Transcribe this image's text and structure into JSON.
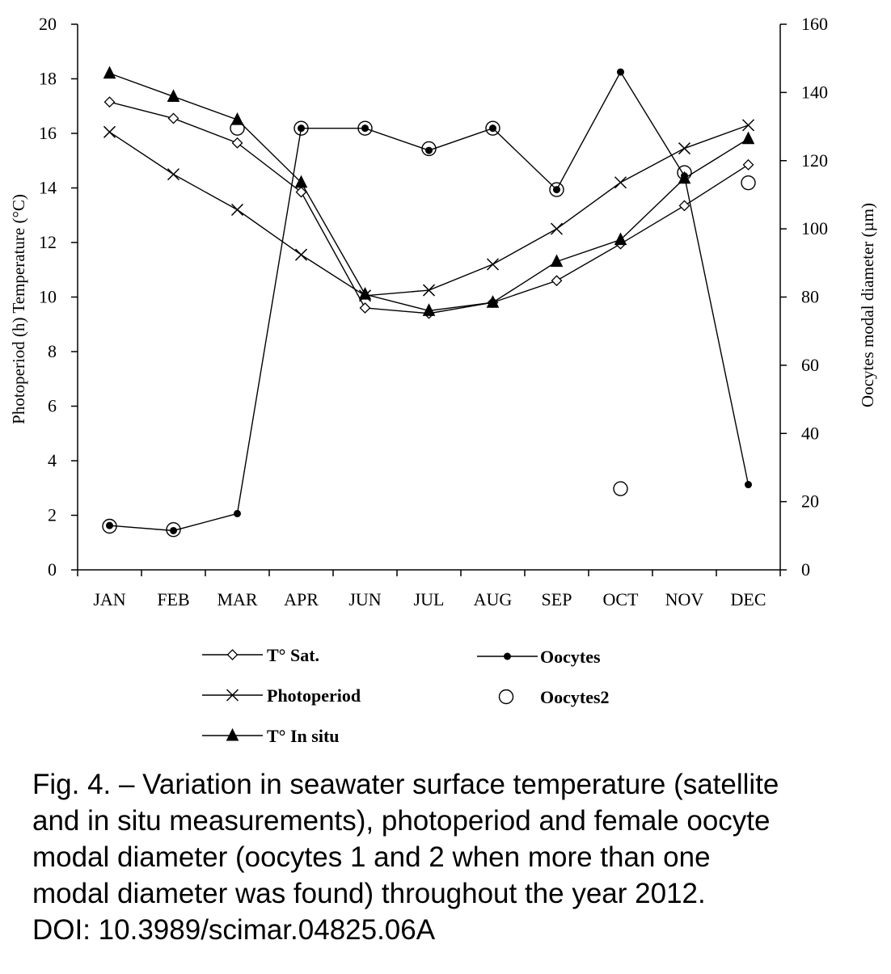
{
  "chart_data": {
    "type": "line",
    "categories": [
      "JAN",
      "FEB",
      "MAR",
      "APR",
      "JUN",
      "JUL",
      "AUG",
      "SEP",
      "OCT",
      "NOV",
      "DEC"
    ],
    "y_left": {
      "label": "Photoperiod (h) Temperature (°C)",
      "lim": [
        0,
        20
      ],
      "ticks": [
        0,
        2,
        4,
        6,
        8,
        10,
        12,
        14,
        16,
        18,
        20
      ]
    },
    "y_right": {
      "label": "Oocytes modal diameter  (µm)",
      "lim": [
        0,
        160
      ],
      "ticks": [
        0,
        20,
        40,
        60,
        80,
        100,
        120,
        140,
        160
      ]
    },
    "grid": false,
    "legend_position": "bottom",
    "series": [
      {
        "name": "T° Sat.",
        "axis": "left",
        "marker": "diamond",
        "line": true,
        "values": [
          17.15,
          16.55,
          15.65,
          13.85,
          9.6,
          9.4,
          9.8,
          10.6,
          11.95,
          13.35,
          14.85
        ]
      },
      {
        "name": "Photoperiod",
        "axis": "left",
        "marker": "cross",
        "line": true,
        "values": [
          16.05,
          14.5,
          13.2,
          11.55,
          10.05,
          10.25,
          11.2,
          12.5,
          14.2,
          15.45,
          16.3
        ]
      },
      {
        "name": "T° In situ",
        "axis": "left",
        "marker": "triangle",
        "line": true,
        "values": [
          18.2,
          17.35,
          16.5,
          14.2,
          10.1,
          9.5,
          9.8,
          11.3,
          12.1,
          14.35,
          15.8
        ]
      },
      {
        "name": "Oocytes",
        "axis": "right",
        "marker": "dot",
        "line": true,
        "values": [
          13,
          11.5,
          16.5,
          129.5,
          129.5,
          123,
          129.5,
          111.5,
          146,
          115.5,
          25
        ]
      },
      {
        "name": "Oocytes2",
        "axis": "right",
        "marker": "circle",
        "line": false,
        "values": [
          12.8,
          11.8,
          129.5,
          129.5,
          129.5,
          123.5,
          129.5,
          111.5,
          23.8,
          116.5,
          113.5
        ]
      }
    ]
  },
  "caption": {
    "lines": [
      "Fig. 4. – Variation in seawater surface temperature (satellite",
      "and in situ measurements), photoperiod and female oocyte",
      "modal diameter (oocytes 1 and 2 when more than one",
      "modal diameter was found) throughout the year 2012.",
      "DOI: 10.3989/scimar.04825.06A"
    ]
  }
}
